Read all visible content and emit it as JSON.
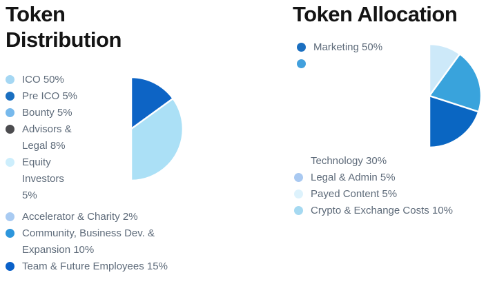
{
  "style": {
    "background": "#ffffff",
    "title_color": "#141414",
    "legend_text_color": "#5d6a79",
    "slice_border_color": "#ffffff"
  },
  "chart_data": [
    {
      "type": "pie",
      "title": "Token Distribution",
      "labels": [
        "ICO",
        "Pre ICO",
        "Bounty",
        "Advisors & Legal",
        "Equity Investors",
        "Accelerator & Charity",
        "Community, Business Dev. & Expansion",
        "Team & Future Employees"
      ],
      "values": [
        50,
        5,
        5,
        8,
        5,
        2,
        10,
        15
      ],
      "unit": "%",
      "start_angle_deg": 0,
      "direction": "clockwise",
      "slice_colors": [
        "#abe0f6",
        "#1e74c8",
        "#85bee9",
        "#dbf1fc",
        "#cfe7f8",
        "#aac9f0",
        "#2e96d9",
        "#0d64c5"
      ],
      "dashed_slice_index": 1,
      "legend": {
        "side": [
          {
            "dot": "#a5d7f3",
            "label": "ICO 50%"
          },
          {
            "dot": "#1a6fc0",
            "label": "Pre ICO 5%"
          },
          {
            "dot": "#77b9ec",
            "label": "Bounty 5%"
          },
          {
            "dot": "#4c4c4f",
            "label": "Advisors & Legal 8%"
          },
          {
            "dot": "#cdeefc",
            "label": "Equity Investors 5%"
          }
        ],
        "bottom": [
          {
            "dot": "#a9cbf2",
            "label": "Accelerator & Charity 2%"
          },
          {
            "dot": "#2d96dc",
            "label": "Community, Business Dev. & Expansion 10%"
          },
          {
            "dot": "#0a61c9",
            "label": "Team & Future Employees 15%"
          }
        ]
      }
    },
    {
      "type": "pie",
      "title": "Token Allocation",
      "labels": [
        "Marketing",
        "Technology",
        "Legal & Admin",
        "Payed Content",
        "Crypto & Exchange Costs"
      ],
      "values": [
        50,
        30,
        5,
        5,
        10
      ],
      "unit": "%",
      "start_angle_deg": 0,
      "direction": "clockwise",
      "slice_colors": [
        "#0a66c2",
        "#39a3dc",
        "#b9d3f1",
        "#e7f3fc",
        "#cde9f9"
      ],
      "dashed_slice_index": null,
      "legend": {
        "side": [
          {
            "dot": "#1b6fc0",
            "label": "Marketing 50%"
          },
          {
            "dot": "#42a0dd",
            "label": ""
          }
        ],
        "bottom": [
          {
            "dot": null,
            "label": "Technology 30%"
          },
          {
            "dot": "#a9c9f1",
            "label": "Legal & Admin 5%"
          },
          {
            "dot": "#ddf2fc",
            "label": "Payed Content 5%"
          },
          {
            "dot": "#a5d9f1",
            "label": "Crypto & Exchange Costs 10%"
          }
        ]
      }
    }
  ]
}
